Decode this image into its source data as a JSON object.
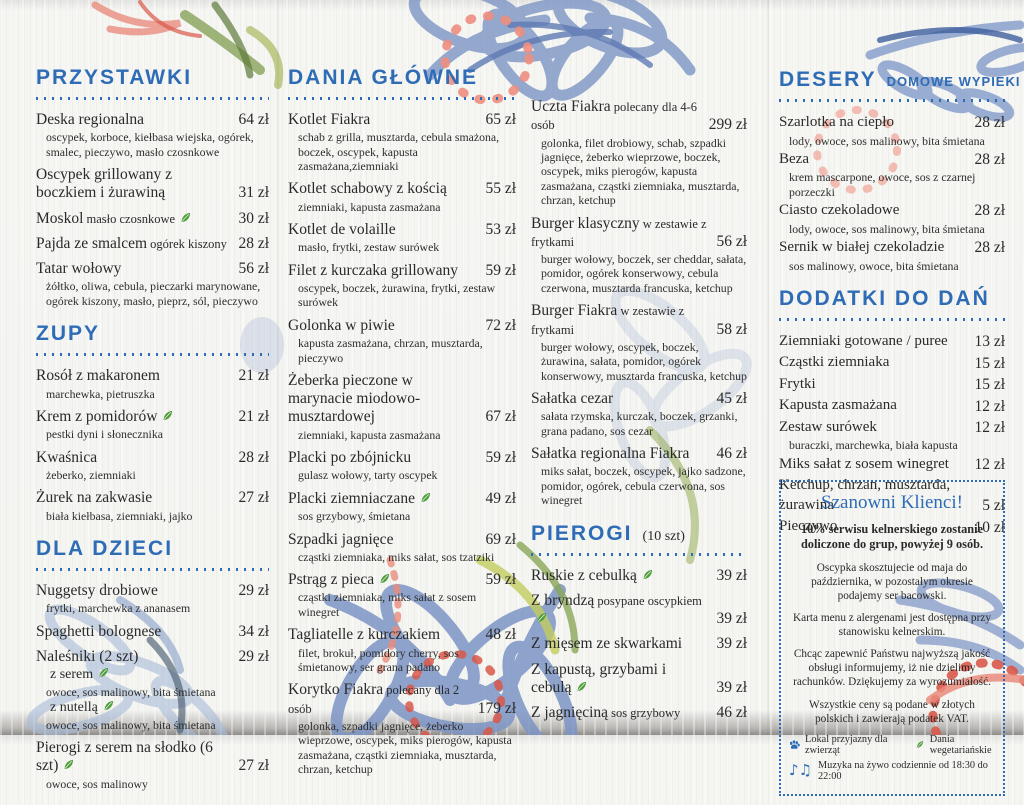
{
  "colors": {
    "accent_blue": "#2e6cb5",
    "text": "#2a2a2a",
    "leaf_green": "#4f9c3c",
    "coral": "#ee8d7e",
    "petal_blue": "#8aa0cc"
  },
  "legend_leaf_meaning": "vegetarian-dish",
  "columns": [
    {
      "sections": [
        {
          "title": "PRZYSTAWKI",
          "items": [
            {
              "name": "Deska regionalna",
              "price": "64 zł",
              "desc": "oscypek, korboce, kiełbasa wiejska, ogórek, smalec, pieczywo, masło czosnkowe"
            },
            {
              "name": "Oscypek grillowany z boczkiem i żurawiną",
              "price": "31 zł"
            },
            {
              "name": "Moskol",
              "suffix": "masło czosnkowe",
              "leaf": true,
              "price": "30 zł"
            },
            {
              "name": "Pajda ze smalcem",
              "suffix": "ogórek kiszony",
              "price": "28 zł"
            },
            {
              "name": "Tatar wołowy",
              "price": "56 zł",
              "desc": "żółtko, oliwa, cebula, pieczarki marynowane, ogórek kiszony, masło, pieprz, sól, pieczywo"
            }
          ]
        },
        {
          "title": "ZUPY",
          "items": [
            {
              "name": "Rosół z makaronem",
              "price": "21 zł",
              "desc": "marchewka, pietruszka"
            },
            {
              "name": "Krem z pomidorów",
              "leaf": true,
              "price": "21 zł",
              "desc": "pestki dyni i słonecznika"
            },
            {
              "name": "Kwaśnica",
              "price": "28 zł",
              "desc": "żeberko, ziemniaki"
            },
            {
              "name": "Żurek na zakwasie",
              "price": "27 zł",
              "desc": "biała kiełbasa, ziemniaki, jajko"
            }
          ]
        },
        {
          "title": "DLA DZIECI",
          "items": [
            {
              "name": "Nuggetsy drobiowe",
              "price": "29 zł",
              "desc": "frytki, marchewka z ananasem"
            },
            {
              "name": "Spaghetti bolognese",
              "price": "34 zł"
            },
            {
              "name": "Naleśniki (2 szt)",
              "price": "29 zł",
              "sublines": [
                {
                  "text": "z serem",
                  "leaf": true
                },
                {
                  "desc": "owoce, sos malinowy, bita śmietana"
                },
                {
                  "text": "z nutellą",
                  "leaf": true
                },
                {
                  "desc": "owoce, sos malinowy, bita śmietana"
                }
              ]
            },
            {
              "name": "Pierogi z serem na słodko (6 szt)",
              "leaf": true,
              "price": "27 zł",
              "desc": "owoce, sos malinowy"
            }
          ]
        }
      ]
    },
    {
      "sections": [
        {
          "title": "DANIA GŁÓWNE",
          "items": [
            {
              "name": "Kotlet Fiakra",
              "price": "65 zł",
              "desc": "schab z grilla, musztarda, cebula smażona, boczek, oscypek, kapusta zasmażana,ziemniaki"
            },
            {
              "name": "Kotlet schabowy z kością",
              "price": "55 zł",
              "desc": "ziemniaki, kapusta zasmażana"
            },
            {
              "name": "Kotlet de volaille",
              "price": "53 zł",
              "desc": "masło, frytki, zestaw surówek"
            },
            {
              "name": "Filet z kurczaka grillowany",
              "price": "59 zł",
              "desc": "oscypek, boczek, żurawina, frytki, zestaw surówek"
            },
            {
              "name": "Golonka w piwie",
              "price": "72 zł",
              "desc": "kapusta zasmażana, chrzan, musztarda, pieczywo"
            },
            {
              "name": "Żeberka pieczone w marynacie miodowo-musztardowej",
              "price": "67 zł",
              "desc": "ziemniaki, kapusta zasmażana"
            },
            {
              "name": "Placki po zbójnicku",
              "price": "59 zł",
              "desc": "gulasz wołowy, tarty oscypek"
            },
            {
              "name": "Placki ziemniaczane",
              "leaf": true,
              "price": "49 zł",
              "desc": "sos grzybowy, śmietana"
            },
            {
              "name": "Szpadki jagnięce",
              "price": "69 zł",
              "desc": "cząstki ziemniaka, miks sałat, sos tzatziki"
            },
            {
              "name": "Pstrąg z pieca",
              "leaf": true,
              "price": "59 zł",
              "desc": "cząstki ziemniaka, miks sałat z sosem winegret"
            },
            {
              "name": "Tagliatelle z kurczakiem",
              "price": "48 zł",
              "desc": "filet, brokuł, pomidory cherry, sos śmietanowy, ser grana padano"
            },
            {
              "name": "Korytko Fiakra",
              "suffix": "polecany dla 2 osób",
              "price": "179 zł",
              "desc": "golonka, szpadki jagnięce, żeberko wieprzowe, oscypek, miks pierogów, kapusta zasmażana, cząstki ziemniaka, musztarda, chrzan, ketchup"
            }
          ]
        }
      ]
    },
    {
      "sections": [
        {
          "title": null,
          "items": [
            {
              "name": "Uczta Fiakra",
              "suffix": "polecany dla 4-6 osób",
              "price": "299 zł",
              "desc": "golonka, filet drobiowy, schab, szpadki jagnięce, żeberko wieprzowe, boczek, oscypek, miks pierogów, kapusta zasmażana, cząstki ziemniaka, musztarda, chrzan, ketchup"
            },
            {
              "name": "Burger klasyczny",
              "suffix": "w zestawie z frytkami",
              "price": "56 zł",
              "desc": "burger wołowy, boczek, ser cheddar, sałata, pomidor, ogórek konserwowy, cebula czerwona, musztarda francuska, ketchup"
            },
            {
              "name": "Burger Fiakra",
              "suffix": "w zestawie z frytkami",
              "price": "58 zł",
              "desc": "burger wołowy, oscypek, boczek, żurawina, sałata, pomidor, ogórek konserwowy, musztarda francuska, ketchup"
            },
            {
              "name": "Sałatka cezar",
              "price": "45 zł",
              "desc": "sałata rzymska, kurczak, boczek, grzanki, grana padano, sos cezar"
            },
            {
              "name": "Sałatka regionalna Fiakra",
              "price": "46 zł",
              "desc": "miks sałat, boczek, oscypek, jajko sadzone, pomidor, ogórek, cebula czerwona, sos winegret"
            }
          ]
        },
        {
          "title": "PIEROGI",
          "title_sub_dark": "(10 szt)",
          "items": [
            {
              "name": "Ruskie z cebulką",
              "leaf": true,
              "price": "39 zł"
            },
            {
              "name": "Z bryndzą",
              "suffix": "posypane oscypkiem",
              "leaf": true,
              "price": "39 zł"
            },
            {
              "name": "Z mięsem ze skwarkami",
              "price": "39 zł"
            },
            {
              "name": "Z kapustą, grzybami i cebulą",
              "leaf": true,
              "price": "39 zł"
            },
            {
              "name": "Z jagnięciną",
              "suffix": "sos grzybowy",
              "price": "46 zł"
            }
          ]
        }
      ]
    },
    {
      "sections": [
        {
          "title": "DESERY",
          "title_sub_blue": "DOMOWE WYPIEKI",
          "compact": true,
          "items": [
            {
              "name": "Szarlotka na ciepło",
              "price": "28 zł",
              "desc": "lody, owoce, sos malinowy, bita śmietana"
            },
            {
              "name": "Beza",
              "price": "28 zł",
              "desc": "krem mascarpone, owoce, sos z czarnej porzeczki"
            },
            {
              "name": "Ciasto czekoladowe",
              "price": "28 zł",
              "desc": "lody, owoce, sos malinowy, bita śmietana"
            },
            {
              "name": "Sernik w białej czekoladzie",
              "price": "28 zł",
              "desc": "sos malinowy, owoce, bita śmietana"
            }
          ]
        },
        {
          "title": "DODATKI DO DAŃ",
          "compact": true,
          "items": [
            {
              "name": "Ziemniaki gotowane / puree",
              "price": "13 zł"
            },
            {
              "name": "Cząstki ziemniaka",
              "price": "15 zł"
            },
            {
              "name": "Frytki",
              "price": "15 zł"
            },
            {
              "name": "Kapusta zasmażana",
              "price": "12 zł"
            },
            {
              "name": "Zestaw surówek",
              "price": "12 zł",
              "desc": "buraczki, marchewka, biała kapusta"
            },
            {
              "name": "Miks sałat z sosem winegret",
              "price": "12 zł"
            },
            {
              "name": "Ketchup, chrzan, musztarda, żurawina",
              "price": "5 zł"
            },
            {
              "name": "Pieczywo",
              "price": "10 zł"
            }
          ]
        }
      ]
    }
  ],
  "info_box": {
    "title": "Szanowni Klienci!",
    "notes": [
      "10% serwisu kelnerskiego zostanie doliczone do grup, powyżej 9 osób.",
      "Oscypka skosztujecie od maja do października, w pozostałym okresie podajemy ser bacowski.",
      "Karta menu z alergenami jest dostępna przy stanowisku kelnerskim.",
      "Chcąc zapewnić Państwu najwyższą jakość obsługi informujemy, iż nie dzielimy rachunków. Dziękujemy za wyrozumiałość.",
      "Wszystkie ceny są podane w złotych polskich i zawierają podatek VAT."
    ],
    "legend": {
      "pets": "Lokal przyjazny dla zwierząt",
      "vegetarian": "Dania wegetariańskie",
      "music": "Muzyka na żywo codziennie od 18:30 do 22:00",
      "music_icon_glyph": "♪♫"
    }
  }
}
